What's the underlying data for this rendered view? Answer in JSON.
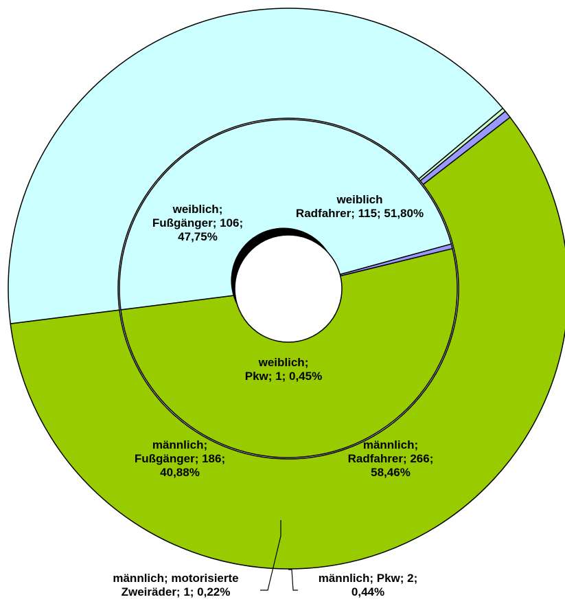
{
  "chart_data": {
    "type": "doughnut",
    "rings": [
      {
        "ring": "outer",
        "group": "männlich",
        "series": [
          {
            "category": "Radfahrer",
            "value": 266,
            "percent": 58.46,
            "color": "#99cc00",
            "label_lines": [
              "männlich;",
              "Radfahrer; 266;",
              "58,46%"
            ]
          },
          {
            "category": "Pkw",
            "value": 2,
            "percent": 0.44,
            "color": "#9999ff",
            "label_lines": [
              "männlich; Pkw; 2;",
              "0,44%"
            ]
          },
          {
            "category": "motorisierte Zweiräder",
            "value": 1,
            "percent": 0.22,
            "color": "#ccffcc",
            "label_lines": [
              "männlich; motorisierte",
              "Zweiräder; 1; 0,22%"
            ]
          },
          {
            "category": "Fußgänger",
            "value": 186,
            "percent": 40.88,
            "color": "#ccffff",
            "label_lines": [
              "männlich;",
              "Fußgänger; 186;",
              "40,88%"
            ]
          }
        ]
      },
      {
        "ring": "inner",
        "group": "weiblich",
        "series": [
          {
            "category": "Radfahrer",
            "value": 115,
            "percent": 51.8,
            "color": "#99cc00",
            "label_lines": [
              "weiblich",
              "Radfahrer; 115; 51,80%"
            ]
          },
          {
            "category": "Pkw",
            "value": 1,
            "percent": 0.45,
            "color": "#9999ff",
            "label_lines": [
              "weiblich;",
              "Pkw; 1; 0,45%"
            ]
          },
          {
            "category": "Fußgänger",
            "value": 106,
            "percent": 47.75,
            "color": "#ccffff",
            "label_lines": [
              "weiblich;",
              "Fußgänger; 106;",
              "47,75%"
            ]
          }
        ]
      }
    ],
    "start_angle_deg": 187.2,
    "direction": "counterclockwise"
  }
}
